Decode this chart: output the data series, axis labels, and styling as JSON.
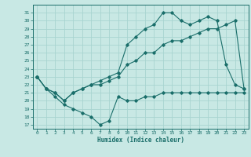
{
  "xlabel": "Humidex (Indice chaleur)",
  "background_color": "#c8e8e4",
  "grid_color": "#a8d4d0",
  "line_color": "#1a6e6a",
  "xlim": [
    -0.5,
    23.5
  ],
  "ylim": [
    16.5,
    32
  ],
  "yticks": [
    17,
    18,
    19,
    20,
    21,
    22,
    23,
    24,
    25,
    26,
    27,
    28,
    29,
    30,
    31
  ],
  "xticks": [
    0,
    1,
    2,
    3,
    4,
    5,
    6,
    7,
    8,
    9,
    10,
    11,
    12,
    13,
    14,
    15,
    16,
    17,
    18,
    19,
    20,
    21,
    22,
    23
  ],
  "series1_x": [
    0,
    1,
    2,
    3,
    4,
    5,
    6,
    7,
    8,
    9,
    10,
    11,
    12,
    13,
    14,
    15,
    16,
    17,
    18,
    19,
    20,
    21,
    22,
    23
  ],
  "series1_y": [
    23,
    21.5,
    20.5,
    19.5,
    19.0,
    18.5,
    18.0,
    17.0,
    17.5,
    20.5,
    20,
    20,
    20.5,
    20.5,
    21,
    21,
    21,
    21,
    21,
    21,
    21,
    21,
    21,
    21
  ],
  "series2_x": [
    0,
    1,
    2,
    3,
    4,
    5,
    6,
    7,
    8,
    9,
    10,
    11,
    12,
    13,
    14,
    15,
    16,
    17,
    18,
    19,
    20,
    21,
    22,
    23
  ],
  "series2_y": [
    23,
    21.5,
    21,
    20,
    21,
    21.5,
    22,
    22,
    22.5,
    23,
    24.5,
    25,
    26,
    26,
    27,
    27.5,
    27.5,
    28,
    28.5,
    29,
    29,
    29.5,
    30,
    21.5
  ],
  "series3_x": [
    0,
    1,
    2,
    3,
    4,
    5,
    6,
    7,
    8,
    9,
    10,
    11,
    12,
    13,
    14,
    15,
    16,
    17,
    18,
    19,
    20,
    21,
    22,
    23
  ],
  "series3_y": [
    23,
    21.5,
    21,
    20,
    21,
    21.5,
    22,
    22.5,
    23,
    23.5,
    27,
    28,
    29,
    29.5,
    31,
    31,
    30,
    29.5,
    30,
    30.5,
    30,
    24.5,
    22,
    21.5
  ]
}
